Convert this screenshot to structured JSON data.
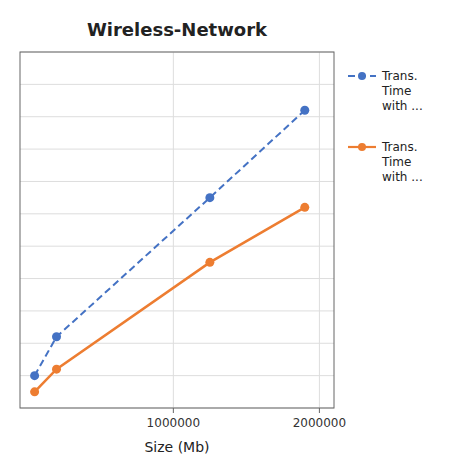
{
  "chart_data": {
    "type": "line",
    "title": "Wireless-Network",
    "x_label": "Size (Mb)",
    "x": [
      50000,
      200000,
      1250000,
      1900000
    ],
    "series": [
      {
        "name": "Trans.\nTime\nwith ...",
        "color": "#4472C4",
        "line_style": "dashed",
        "marker": "circle",
        "values": [
          1.0,
          2.2,
          6.5,
          9.2
        ]
      },
      {
        "name": "Trans.\nTime\nwith ...",
        "color": "#ED7D31",
        "line_style": "solid",
        "marker": "circle",
        "values": [
          0.5,
          1.2,
          4.5,
          6.2
        ]
      }
    ],
    "xlim": [
      -50000,
      2100000
    ],
    "ylim": [
      0,
      11
    ],
    "xticks": [
      1000000,
      2000000
    ],
    "yticks": [
      0,
      1,
      2,
      3,
      4,
      5,
      6,
      7,
      8,
      9,
      10,
      11
    ],
    "grid": true,
    "legend": "right",
    "tick_labels": "x"
  }
}
